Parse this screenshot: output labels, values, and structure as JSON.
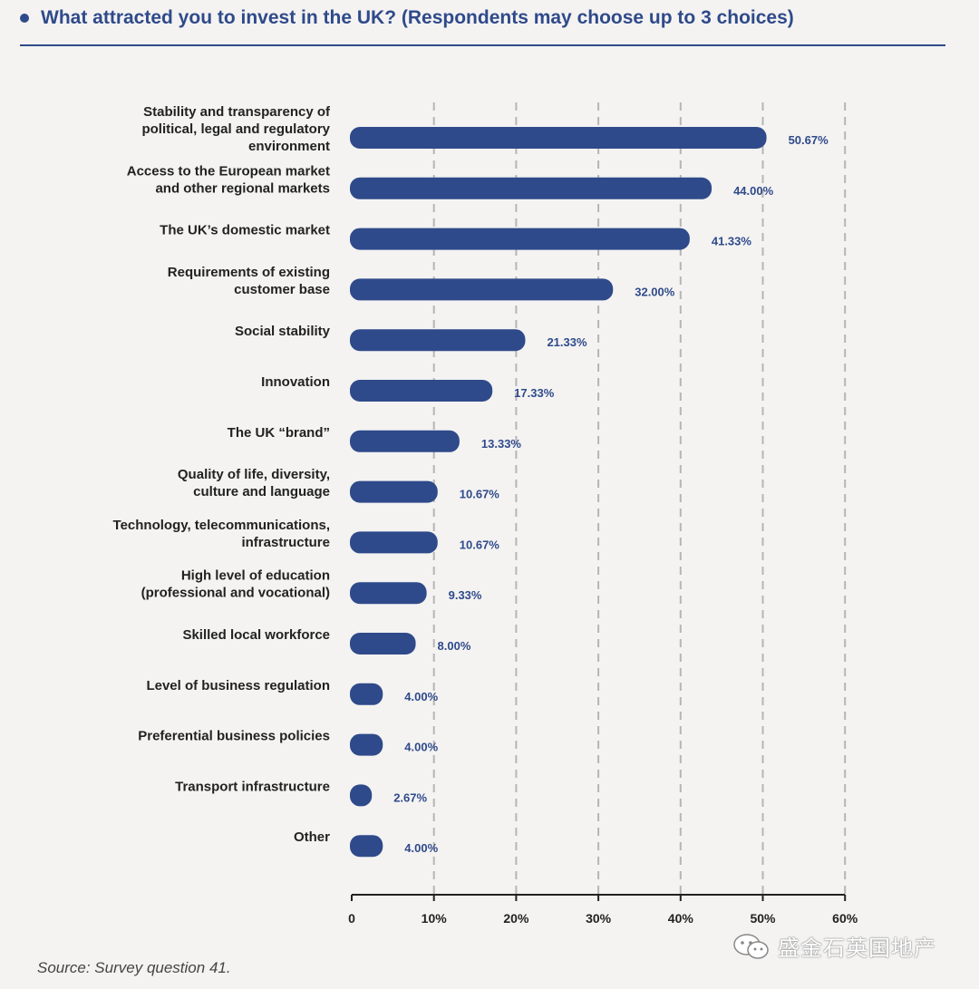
{
  "header": {
    "title": "What attracted you to invest in the UK? (Respondents may choose up to 3 choices)"
  },
  "chart_data": {
    "type": "bar",
    "orientation": "horizontal",
    "title": "What attracted you to invest in the UK? (Respondents may choose up to 3 choices)",
    "categories": [
      [
        "Stability and transparency of",
        "political, legal and regulatory",
        "environment"
      ],
      [
        "Access to the European market",
        "and other regional markets"
      ],
      [
        "The UK’s domestic market"
      ],
      [
        "Requirements of existing",
        "customer base"
      ],
      [
        "Social stability"
      ],
      [
        "Innovation"
      ],
      [
        "The UK “brand”"
      ],
      [
        "Quality of life, diversity,",
        "culture and language"
      ],
      [
        "Technology, telecommunications,",
        "infrastructure"
      ],
      [
        "High level of education",
        "(professional and vocational)"
      ],
      [
        "Skilled local workforce"
      ],
      [
        "Level of business regulation"
      ],
      [
        "Preferential business policies"
      ],
      [
        "Transport infrastructure"
      ],
      [
        "Other"
      ]
    ],
    "values": [
      50.67,
      44.0,
      41.33,
      32.0,
      21.33,
      17.33,
      13.33,
      10.67,
      10.67,
      9.33,
      8.0,
      4.0,
      4.0,
      2.67,
      4.0
    ],
    "value_labels": [
      "50.67%",
      "44.00%",
      "41.33%",
      "32.00%",
      "21.33%",
      "17.33%",
      "13.33%",
      "10.67%",
      "10.67%",
      "9.33%",
      "8.00%",
      "4.00%",
      "4.00%",
      "2.67%",
      "4.00%"
    ],
    "xlim": [
      0,
      60
    ],
    "xticks": [
      0,
      10,
      20,
      30,
      40,
      50,
      60
    ],
    "xtick_labels": [
      "0",
      "10%",
      "20%",
      "30%",
      "40%",
      "50%",
      "60%"
    ],
    "grid": "vertical dashed",
    "bar_color": "#2f4a8a",
    "gridline_color": "#b5b5b5"
  },
  "footer": {
    "source": "Source: Survey question 41.",
    "watermark": "盛金石英国地产"
  }
}
